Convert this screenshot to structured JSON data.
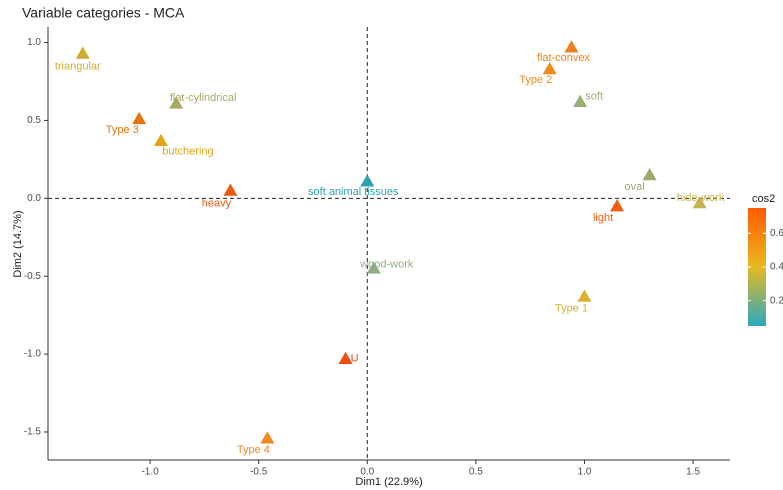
{
  "chart_data": {
    "type": "scatter",
    "title": "Variable categories - MCA",
    "x_label": "Dim1 (22.9%)",
    "y_label": "Dim2 (14.7%)",
    "labels": [
      "triangular",
      "flat-cylindrical",
      "Type 3",
      "butchering",
      "heavy",
      "soft animal tissues",
      "wood-work",
      "U",
      "Type 4",
      "flat-convex",
      "Type 2",
      "soft",
      "oval",
      "hide-work",
      "light",
      "Type 1"
    ],
    "x": [
      -1.31,
      -0.88,
      -1.05,
      -0.95,
      -0.63,
      0.0,
      0.03,
      -0.1,
      -0.46,
      0.94,
      0.84,
      0.98,
      1.3,
      1.53,
      1.15,
      1.0
    ],
    "y": [
      0.93,
      0.61,
      0.51,
      0.37,
      0.05,
      0.11,
      -0.45,
      -1.03,
      -1.54,
      0.97,
      0.83,
      0.62,
      0.15,
      -0.03,
      -0.05,
      -0.63
    ],
    "colors": [
      "#d2ac2c",
      "#a9a862",
      "#e8740f",
      "#e2a51a",
      "#ec5a12",
      "#2aa2b2",
      "#8fae84",
      "#f04c10",
      "#f0881a",
      "#f0801e",
      "#ee8a1c",
      "#98ae72",
      "#9cab72",
      "#c6b352",
      "#ee5e10",
      "#d8b032"
    ],
    "xlim": [
      -1.47,
      1.67
    ],
    "ylim": [
      -1.68,
      1.1
    ],
    "xticks": [
      {
        "value": -1,
        "label": "-1.0"
      },
      {
        "value": -0.5,
        "label": "-0.5"
      },
      {
        "value": 0,
        "label": "0.0"
      },
      0.5,
      {
        "value": 1,
        "label": "1.0"
      },
      1.5
    ],
    "yticks": [
      {
        "value": 1,
        "label": "1.0"
      },
      0.5,
      {
        "value": 0,
        "label": "0.0"
      },
      -0.5,
      {
        "value": -1,
        "label": "-1.0"
      },
      -1.5
    ],
    "colorbar": {
      "title": "cos2",
      "colors": [
        "#2aa9be",
        "#e8b820",
        "#ff5a00"
      ],
      "lim": [
        0.05,
        0.75
      ],
      "ticks": [
        0.2,
        0.4,
        0.6
      ]
    }
  }
}
